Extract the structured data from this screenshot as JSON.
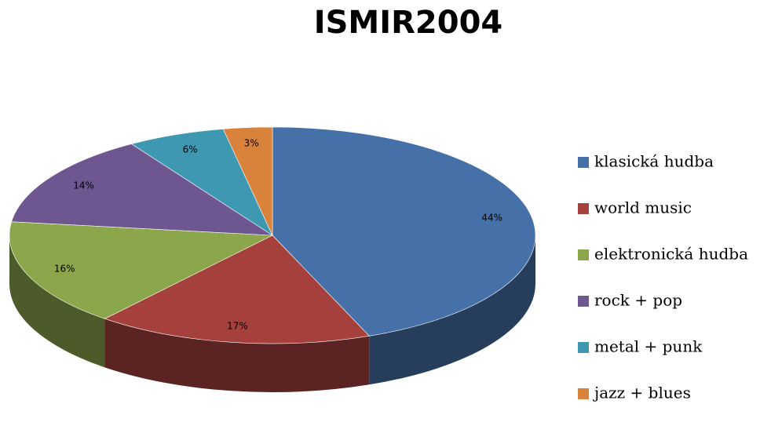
{
  "chart_data": {
    "type": "pie",
    "title": "ISMIR2004",
    "categories": [
      "klasická hudba",
      "world music",
      "elektronická hudba",
      "rock + pop",
      "metal + punk",
      "jazz + blues"
    ],
    "values": [
      44,
      17,
      16,
      14,
      6,
      3
    ],
    "value_labels": [
      "44%",
      "17%",
      "16%",
      "14%",
      "6%",
      "3%"
    ],
    "colors": [
      "#4571a8",
      "#a6403d",
      "#8ba64b",
      "#6e5690",
      "#3e98b1",
      "#d9823b"
    ],
    "legend": "right"
  }
}
